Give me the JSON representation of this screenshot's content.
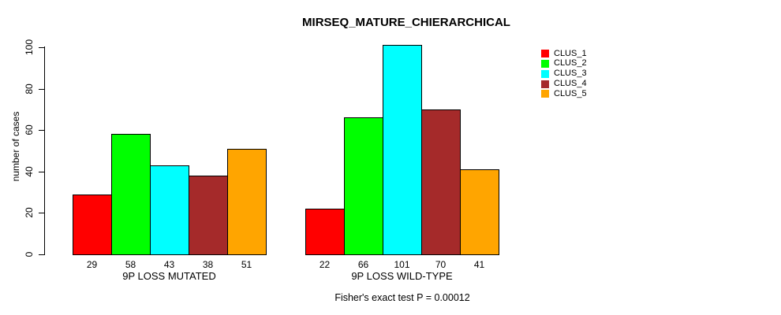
{
  "chart_data": {
    "type": "bar",
    "title": "MIRSEQ_MATURE_CHIERARCHICAL",
    "xlabel": "",
    "ylabel": "number of cases",
    "annotation": "Fisher's exact test P = 0.00012",
    "ylim": [
      0,
      100
    ],
    "y_ticks": [
      0,
      20,
      40,
      60,
      80,
      100
    ],
    "grid": false,
    "legend_position": "top-right",
    "background": "#FFFFFF",
    "axis_color": "#000000",
    "categories": [
      "9P LOSS MUTATED",
      "9P LOSS WILD-TYPE"
    ],
    "series": [
      {
        "name": "CLUS_1",
        "color": "#FF0000",
        "values": [
          29,
          22
        ]
      },
      {
        "name": "CLUS_2",
        "color": "#00FF00",
        "values": [
          58,
          66
        ]
      },
      {
        "name": "CLUS_3",
        "color": "#00FFFF",
        "values": [
          43,
          101
        ]
      },
      {
        "name": "CLUS_4",
        "color": "#A52A2A",
        "values": [
          38,
          70
        ]
      },
      {
        "name": "CLUS_5",
        "color": "#FFA500",
        "values": [
          51,
          41
        ]
      }
    ],
    "bar_value_labels": [
      [
        29,
        58,
        43,
        38,
        51
      ],
      [
        22,
        66,
        101,
        70,
        41
      ]
    ]
  }
}
